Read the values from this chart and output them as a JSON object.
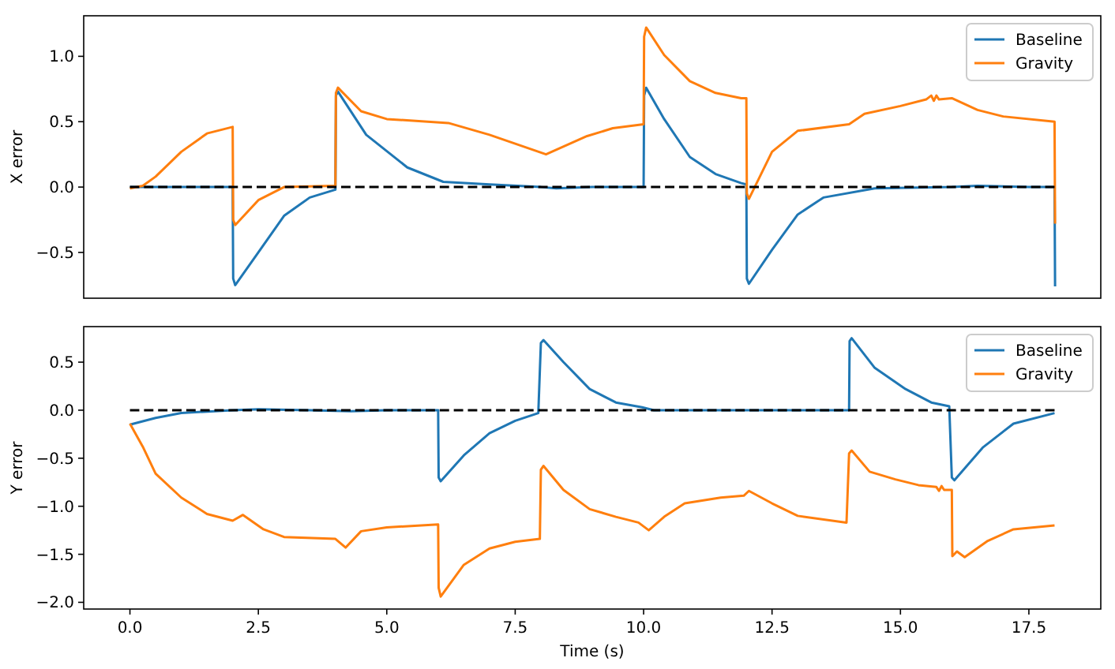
{
  "chart_data": [
    {
      "type": "line",
      "ylabel": "X error",
      "xlim": [
        -0.9,
        18.9
      ],
      "ylim": [
        -0.85,
        1.31
      ],
      "yticks": [
        {
          "value": -0.5,
          "label": "−0.5"
        },
        {
          "value": 0,
          "label": "0.0"
        },
        {
          "value": 0.5,
          "label": "0.5"
        },
        {
          "value": 1,
          "label": "1.0"
        }
      ],
      "tick_labels": "y",
      "legend": "top right",
      "series": [
        {
          "name": "Baseline",
          "color": "#1f77b4",
          "x": [
            0,
            2,
            2.01,
            2.05,
            2.5,
            3,
            3.5,
            4,
            4.01,
            4.05,
            4.6,
            5.4,
            6.1,
            7,
            8,
            8.3,
            9,
            10,
            10.01,
            10.05,
            10.4,
            10.9,
            11.4,
            11.9,
            12,
            12.01,
            12.05,
            12.5,
            13,
            13.5,
            14.5,
            16,
            16.5,
            17.5,
            18,
            18.01
          ],
          "values": [
            0,
            0,
            -0.7,
            -0.75,
            -0.5,
            -0.22,
            -0.08,
            -0.02,
            0.7,
            0.73,
            0.4,
            0.15,
            0.04,
            0.02,
            0,
            -0.01,
            0,
            0,
            0.7,
            0.76,
            0.52,
            0.23,
            0.1,
            0.03,
            0.02,
            -0.7,
            -0.74,
            -0.48,
            -0.21,
            -0.08,
            -0.01,
            0,
            0.01,
            0,
            0,
            -0.76
          ]
        },
        {
          "name": "Gravity",
          "color": "#ff7f0e",
          "x": [
            0,
            0.25,
            0.5,
            1,
            1.5,
            2,
            2.01,
            2.05,
            2.5,
            3,
            4,
            4.01,
            4.05,
            4.5,
            5,
            6.2,
            7,
            8.1,
            8.9,
            9.4,
            10,
            10.01,
            10.05,
            10.4,
            10.9,
            11.4,
            11.9,
            12,
            12.01,
            12.05,
            12.5,
            13,
            14,
            14.3,
            15,
            15.5,
            15.6,
            15.65,
            15.7,
            15.75,
            16,
            16.5,
            17,
            18,
            18.01
          ],
          "values": [
            -0.01,
            0.01,
            0.08,
            0.27,
            0.41,
            0.46,
            -0.25,
            -0.29,
            -0.1,
            0,
            0.01,
            0.72,
            0.76,
            0.58,
            0.52,
            0.49,
            0.4,
            0.25,
            0.39,
            0.45,
            0.48,
            1.15,
            1.22,
            1.01,
            0.81,
            0.72,
            0.68,
            0.68,
            -0.05,
            -0.09,
            0.27,
            0.43,
            0.48,
            0.56,
            0.62,
            0.67,
            0.7,
            0.66,
            0.7,
            0.67,
            0.68,
            0.59,
            0.54,
            0.5,
            -0.28
          ]
        },
        {
          "color": "#000000",
          "line_style": "dashed",
          "x": [
            0,
            18
          ],
          "values": [
            0,
            0
          ]
        }
      ]
    },
    {
      "type": "line",
      "xlabel": "Time (s)",
      "ylabel": "Y error",
      "xlim": [
        -0.9,
        18.9
      ],
      "ylim": [
        -2.07,
        0.87
      ],
      "xticks": [
        {
          "value": 0,
          "label": "0.0"
        },
        {
          "value": 2.5,
          "label": "2.5"
        },
        {
          "value": 5,
          "label": "5.0"
        },
        {
          "value": 7.5,
          "label": "7.5"
        },
        {
          "value": 10,
          "label": "10.0"
        },
        {
          "value": 12.5,
          "label": "12.5"
        },
        {
          "value": 15,
          "label": "15.0"
        },
        {
          "value": 17.5,
          "label": "17.5"
        }
      ],
      "yticks": [
        {
          "value": -2,
          "label": "−2.0"
        },
        {
          "value": -1.5,
          "label": "−1.5"
        },
        {
          "value": -1,
          "label": "−1.0"
        },
        {
          "value": -0.5,
          "label": "−0.5"
        },
        {
          "value": 0,
          "label": "0.0"
        },
        {
          "value": 0.5,
          "label": "0.5"
        }
      ],
      "legend": "top right",
      "series": [
        {
          "name": "Baseline",
          "color": "#1f77b4",
          "x": [
            0,
            0.5,
            1,
            2,
            2.5,
            3.5,
            4.3,
            5,
            6,
            6.01,
            6.05,
            6.5,
            7,
            7.5,
            7.95,
            8,
            8.05,
            8.44,
            8.95,
            9.46,
            9.97,
            10.2,
            12,
            14,
            14.01,
            14.05,
            14.5,
            15.1,
            15.6,
            15.95,
            16,
            16.05,
            16.6,
            17.2,
            18
          ],
          "values": [
            -0.15,
            -0.08,
            -0.03,
            0,
            0.01,
            0,
            -0.01,
            0,
            0,
            -0.7,
            -0.74,
            -0.47,
            -0.24,
            -0.11,
            -0.03,
            0.7,
            0.73,
            0.5,
            0.22,
            0.08,
            0.03,
            0,
            0,
            0,
            0.72,
            0.75,
            0.44,
            0.22,
            0.08,
            0.04,
            -0.7,
            -0.73,
            -0.39,
            -0.14,
            -0.03
          ]
        },
        {
          "name": "Gravity",
          "color": "#ff7f0e",
          "x": [
            0,
            0.25,
            0.5,
            1,
            1.5,
            2,
            2.2,
            2.6,
            3,
            4,
            4.2,
            4.5,
            5,
            6,
            6.01,
            6.05,
            6.5,
            7,
            7.5,
            7.98,
            8,
            8.05,
            8.44,
            8.95,
            9.46,
            9.9,
            10.1,
            10.4,
            10.8,
            11.5,
            11.95,
            12.05,
            12.5,
            13,
            13.95,
            14,
            14.05,
            14.4,
            14.9,
            15.35,
            15.7,
            15.75,
            15.8,
            15.85,
            16,
            16.01,
            16.1,
            16.25,
            16.7,
            17.2,
            18
          ],
          "values": [
            -0.14,
            -0.38,
            -0.66,
            -0.91,
            -1.08,
            -1.15,
            -1.09,
            -1.24,
            -1.32,
            -1.34,
            -1.43,
            -1.26,
            -1.22,
            -1.19,
            -1.85,
            -1.94,
            -1.61,
            -1.44,
            -1.37,
            -1.34,
            -0.62,
            -0.58,
            -0.83,
            -1.03,
            -1.11,
            -1.17,
            -1.25,
            -1.11,
            -0.97,
            -0.91,
            -0.89,
            -0.84,
            -0.97,
            -1.1,
            -1.17,
            -0.45,
            -0.42,
            -0.64,
            -0.72,
            -0.78,
            -0.8,
            -0.84,
            -0.79,
            -0.83,
            -0.83,
            -1.52,
            -1.47,
            -1.53,
            -1.36,
            -1.24,
            -1.2
          ]
        },
        {
          "color": "#000000",
          "line_style": "dashed",
          "x": [
            0,
            18
          ],
          "values": [
            0,
            0
          ]
        }
      ]
    }
  ]
}
